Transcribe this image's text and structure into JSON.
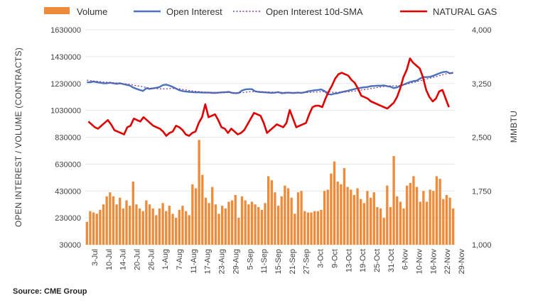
{
  "source": "Source: CME Group",
  "chart_data": {
    "type": "bar+line",
    "legend": [
      {
        "name": "Volume",
        "kind": "bar",
        "color": "#ED8B3A"
      },
      {
        "name": "Open Interest",
        "kind": "line",
        "color": "#4A72B8"
      },
      {
        "name": "Open Interest 10d-SMA",
        "kind": "dotted",
        "color": "#7F3FA0"
      },
      {
        "name": "NATURAL GAS",
        "kind": "line",
        "color": "#E00000"
      }
    ],
    "y_left": {
      "label": "OPEN INTEREST / VOLUME (CONTRACTS)",
      "min": 30000,
      "max": 1630000,
      "ticks": [
        "1630000",
        "1430000",
        "1230000",
        "1030000",
        "830000",
        "630000",
        "430000",
        "230000",
        "30000"
      ],
      "tick_values": [
        1630000,
        1430000,
        1230000,
        1030000,
        830000,
        630000,
        430000,
        230000,
        30000
      ]
    },
    "y_right": {
      "label": "MMBTU",
      "min": 1000,
      "max": 4000,
      "ticks": [
        "4,000",
        "3,250",
        "2,500",
        "1,750",
        "1,000"
      ],
      "tick_values": [
        4000,
        3250,
        2500,
        1750,
        1000
      ]
    },
    "x_labels": [
      "3-Jul",
      "10-Jul",
      "14-Jul",
      "20-Jul",
      "26-Jul",
      "1-Aug",
      "7-Aug",
      "11-Aug",
      "17-Aug",
      "23-Aug",
      "29-Aug",
      "5-Sep",
      "11-Sep",
      "15-Sep",
      "21-Sep",
      "27-Sep",
      "3-Oct",
      "9-Oct",
      "13-Oct",
      "19-Oct",
      "25-Oct",
      "31-Oct",
      "6-Nov",
      "10-Nov",
      "16-Nov",
      "22-Nov",
      "29-Nov"
    ],
    "volume": [
      200000,
      280000,
      270000,
      260000,
      290000,
      330000,
      390000,
      420000,
      390000,
      330000,
      380000,
      300000,
      360000,
      320000,
      500000,
      330000,
      300000,
      280000,
      360000,
      330000,
      300000,
      250000,
      300000,
      340000,
      280000,
      320000,
      260000,
      230000,
      290000,
      320000,
      280000,
      250000,
      480000,
      450000,
      810000,
      550000,
      380000,
      340000,
      460000,
      330000,
      260000,
      320000,
      300000,
      350000,
      360000,
      400000,
      230000,
      390000,
      360000,
      330000,
      350000,
      330000,
      310000,
      290000,
      340000,
      540000,
      510000,
      420000,
      320000,
      390000,
      470000,
      450000,
      380000,
      260000,
      420000,
      430000,
      280000,
      270000,
      270000,
      280000,
      280000,
      290000,
      430000,
      440000,
      560000,
      650000,
      500000,
      480000,
      600000,
      460000,
      440000,
      400000,
      450000,
      370000,
      340000,
      430000,
      380000,
      420000,
      310000,
      300000,
      230000,
      470000,
      310000,
      690000,
      390000,
      350000,
      300000,
      470000,
      490000,
      540000,
      460000,
      350000,
      430000,
      350000,
      440000,
      430000,
      540000,
      520000,
      370000,
      400000,
      380000,
      300000
    ],
    "open_interest": [
      1240000,
      1240000,
      1245000,
      1240000,
      1236000,
      1232000,
      1232000,
      1236000,
      1232000,
      1228000,
      1232000,
      1226000,
      1220000,
      1215000,
      1200000,
      1190000,
      1182000,
      1175000,
      1195000,
      1190000,
      1194000,
      1198000,
      1204000,
      1218000,
      1222000,
      1215000,
      1205000,
      1192000,
      1180000,
      1174000,
      1170000,
      1168000,
      1166000,
      1164000,
      1164000,
      1162000,
      1162000,
      1162000,
      1160000,
      1160000,
      1162000,
      1164000,
      1166000,
      1168000,
      1160000,
      1158000,
      1160000,
      1178000,
      1186000,
      1188000,
      1188000,
      1172000,
      1168000,
      1166000,
      1164000,
      1162000,
      1160000,
      1162000,
      1166000,
      1158000,
      1160000,
      1162000,
      1160000,
      1160000,
      1162000,
      1160000,
      1165000,
      1172000,
      1176000,
      1180000,
      1182000,
      1186000,
      1175000,
      1150000,
      1148000,
      1155000,
      1158000,
      1165000,
      1170000,
      1176000,
      1182000,
      1188000,
      1194000,
      1198000,
      1202000,
      1204000,
      1210000,
      1212000,
      1214000,
      1214000,
      1216000,
      1210000,
      1206000,
      1196000,
      1202000,
      1212000,
      1222000,
      1232000,
      1242000,
      1248000,
      1252000,
      1268000,
      1278000,
      1278000,
      1280000,
      1288000,
      1298000,
      1308000,
      1316000,
      1318000,
      1306000,
      1310000
    ],
    "oi_sma10": [
      1255000,
      1252000,
      1248000,
      1246000,
      1244000,
      1242000,
      1240000,
      1238000,
      1236000,
      1234000,
      1231000,
      1228000,
      1226000,
      1223000,
      1218000,
      1214000,
      1210000,
      1206000,
      1200000,
      1196000,
      1194000,
      1192000,
      1190000,
      1190000,
      1190000,
      1192000,
      1194000,
      1193000,
      1190000,
      1186000,
      1182000,
      1178000,
      1175000,
      1172000,
      1170000,
      1168000,
      1166000,
      1165000,
      1164000,
      1163000,
      1162000,
      1162000,
      1162000,
      1163000,
      1162000,
      1161000,
      1160000,
      1162000,
      1165000,
      1168000,
      1170000,
      1170000,
      1170000,
      1169000,
      1168000,
      1167000,
      1166000,
      1165000,
      1165000,
      1164000,
      1163000,
      1162000,
      1162000,
      1161000,
      1162000,
      1162000,
      1162000,
      1163000,
      1165000,
      1167000,
      1168000,
      1170000,
      1170000,
      1168000,
      1166000,
      1165000,
      1165000,
      1166000,
      1167000,
      1168000,
      1170000,
      1173000,
      1177000,
      1181000,
      1185000,
      1188000,
      1192000,
      1196000,
      1200000,
      1204000,
      1208000,
      1211000,
      1213000,
      1213000,
      1214000,
      1216000,
      1220000,
      1226000,
      1232000,
      1238000,
      1244000,
      1250000,
      1258000,
      1264000,
      1270000,
      1276000,
      1283000,
      1290000,
      1297000,
      1303000,
      1307000,
      1310000
    ],
    "natural_gas": [
      2720,
      2680,
      2640,
      2620,
      2660,
      2700,
      2740,
      2680,
      2600,
      2580,
      2560,
      2540,
      2640,
      2660,
      2760,
      2740,
      2720,
      2780,
      2740,
      2700,
      2660,
      2640,
      2620,
      2580,
      2520,
      2560,
      2580,
      2660,
      2640,
      2600,
      2540,
      2520,
      2560,
      2580,
      2700,
      2780,
      2960,
      2780,
      2800,
      2820,
      2740,
      2640,
      2620,
      2560,
      2620,
      2580,
      2540,
      2560,
      2600,
      2680,
      2760,
      2840,
      2820,
      2800,
      2700,
      2560,
      2600,
      2640,
      2680,
      2660,
      2640,
      2700,
      2880,
      2760,
      2640,
      2660,
      2680,
      2700,
      2820,
      2920,
      2940,
      2940,
      2920,
      3040,
      3140,
      3220,
      3320,
      3380,
      3400,
      3380,
      3360,
      3300,
      3260,
      3180,
      3080,
      3060,
      3040,
      3000,
      2980,
      2960,
      2940,
      2920,
      2900,
      2940,
      2980,
      3060,
      3180,
      3340,
      3440,
      3600,
      3540,
      3500,
      3460,
      3340,
      3160,
      3060,
      3000,
      3040,
      3140,
      3160,
      3040,
      2920
    ],
    "natural_gas_len": 112
  }
}
